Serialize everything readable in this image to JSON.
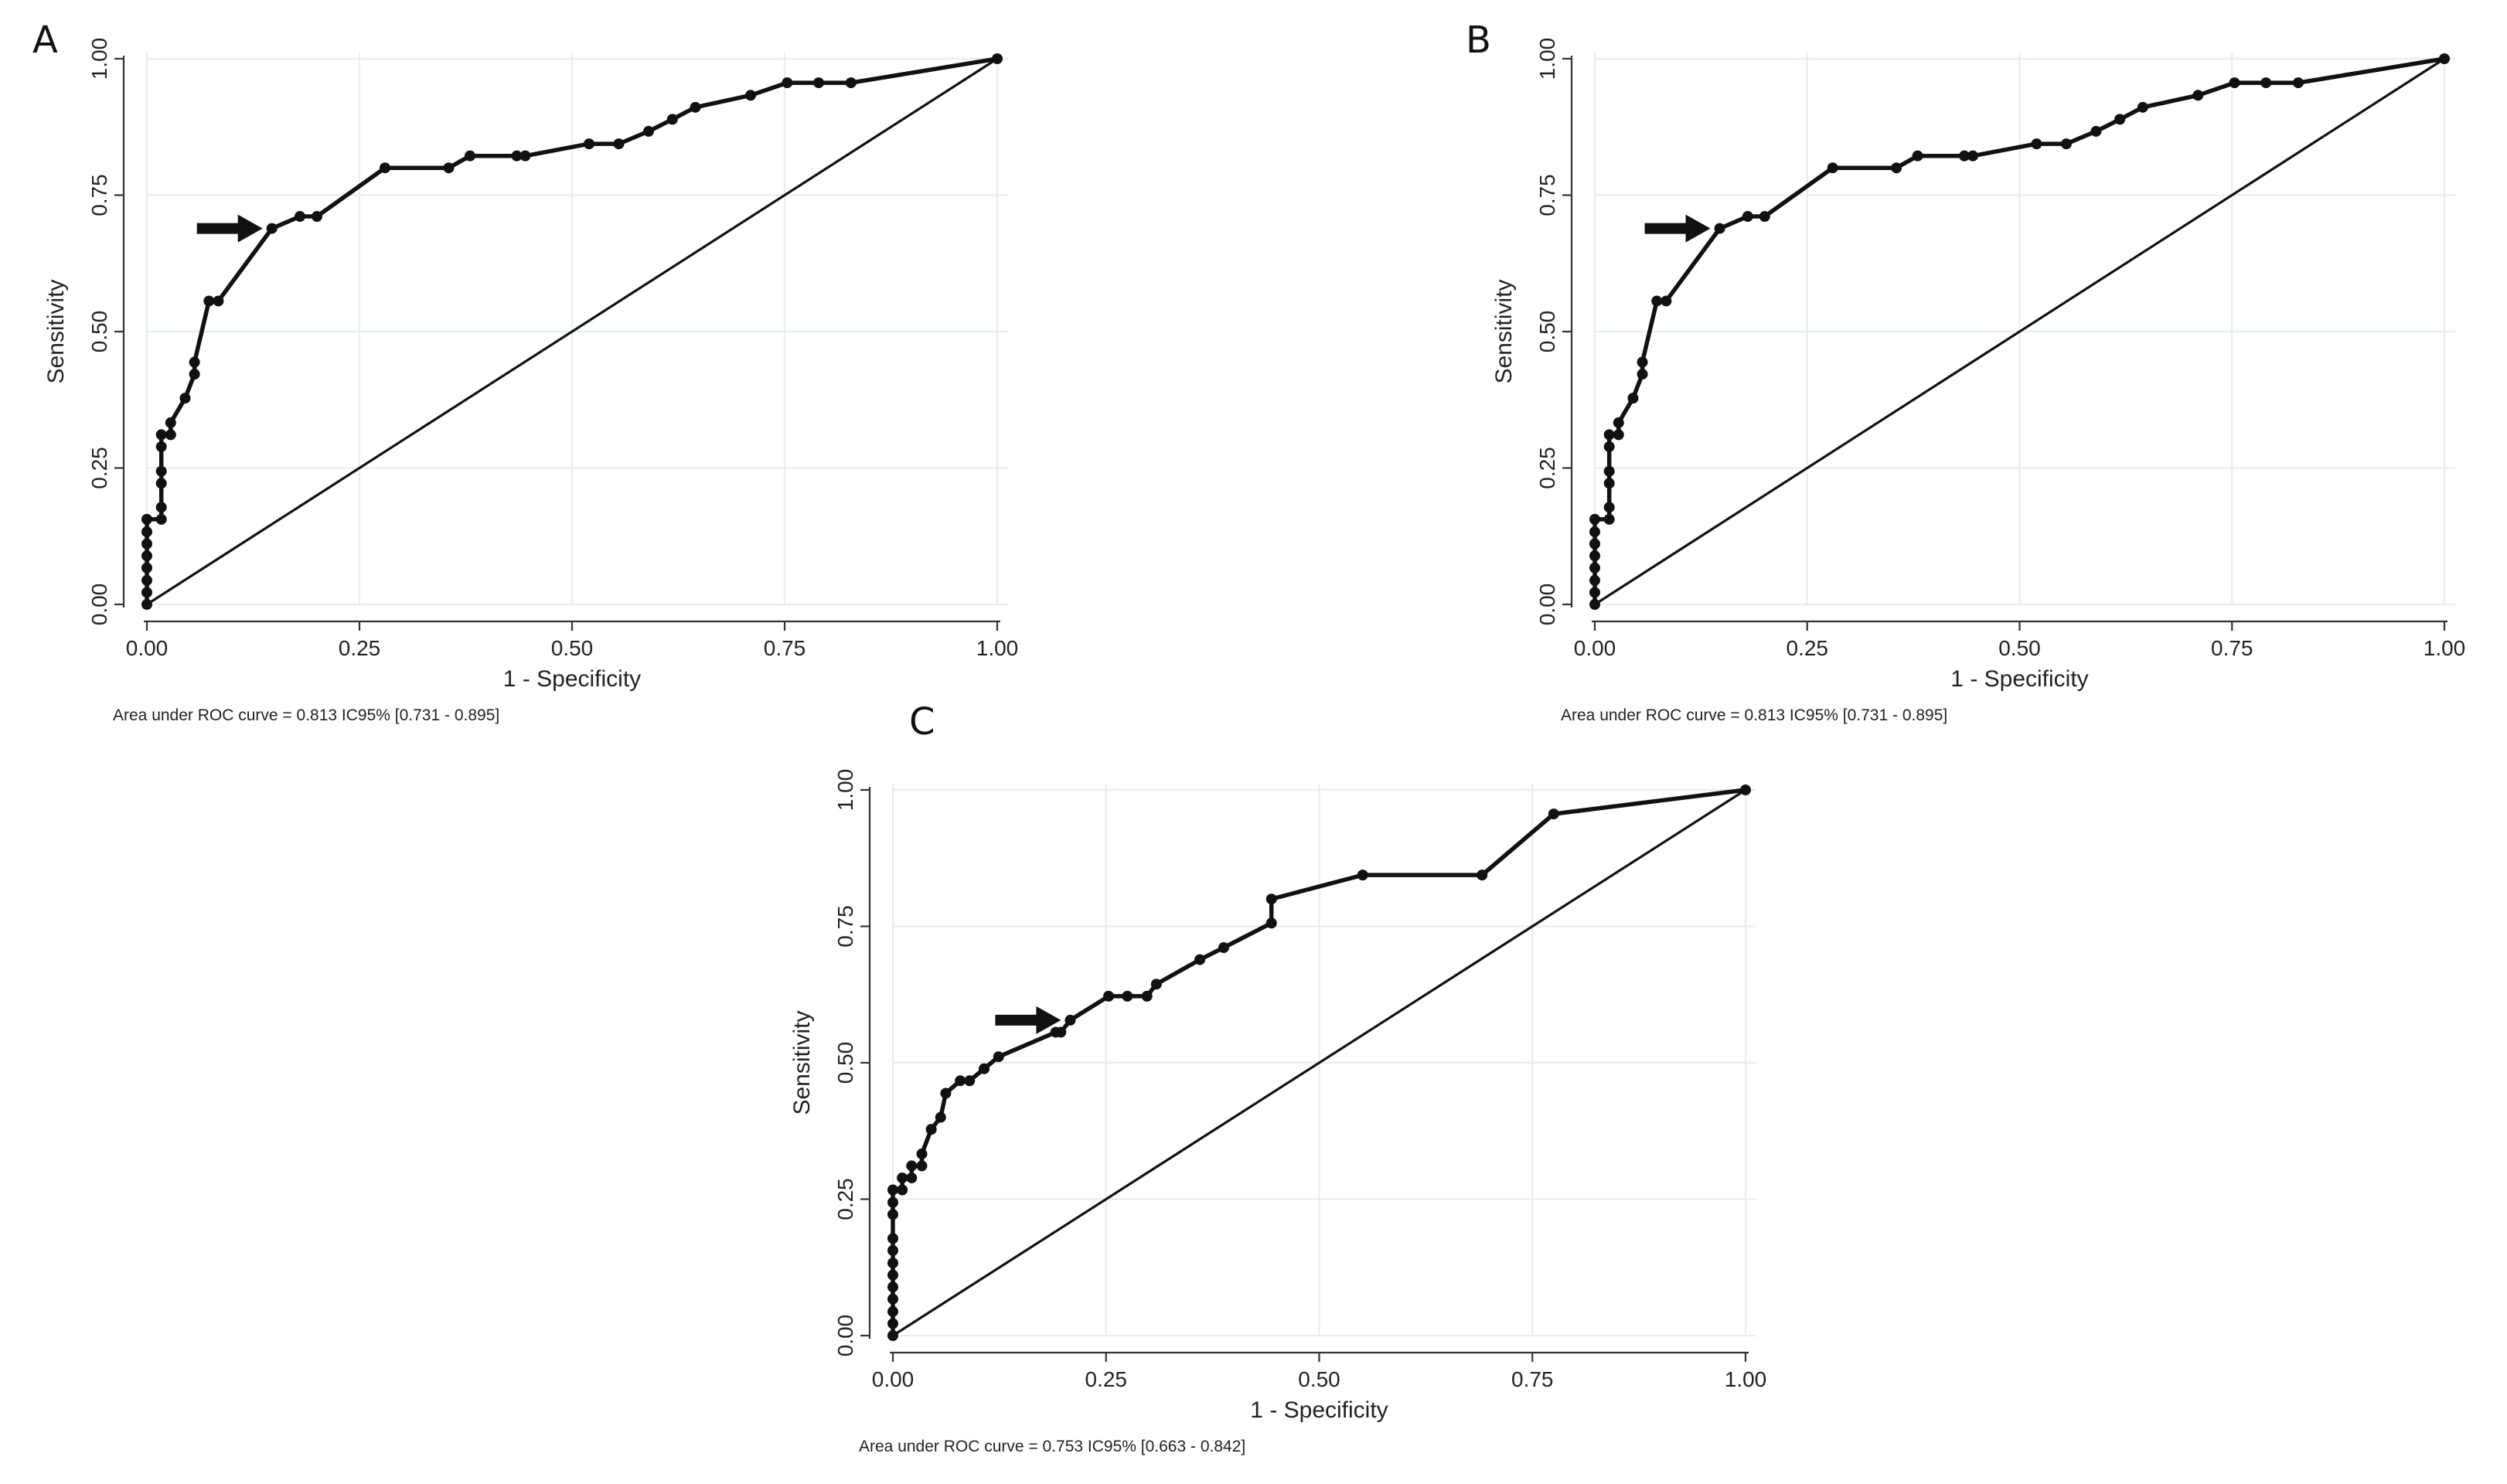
{
  "chart_data": [
    {
      "type": "line",
      "panel_label": "A",
      "xlabel": "1 - Specificity",
      "ylabel": "Sensitivity",
      "xlim": [
        0,
        1
      ],
      "ylim": [
        0,
        1
      ],
      "xticks": [
        "0.00",
        "0.25",
        "0.50",
        "0.75",
        "1.00"
      ],
      "yticks": [
        "0.00",
        "0.25",
        "0.50",
        "0.75",
        "1.00"
      ],
      "grid": true,
      "reference_line": [
        [
          0,
          0
        ],
        [
          1,
          1
        ]
      ],
      "annotation": "Area under ROC curve = 0.813  IC95% [0.731 - 0.895]",
      "arrow_at": [
        0.147,
        0.689
      ],
      "series": [
        {
          "name": "ROC curve",
          "points": [
            [
              0,
              0
            ],
            [
              0,
              0.022
            ],
            [
              0,
              0.044
            ],
            [
              0,
              0.067
            ],
            [
              0,
              0.089
            ],
            [
              0,
              0.111
            ],
            [
              0,
              0.133
            ],
            [
              0,
              0.156
            ],
            [
              0.017,
              0.156
            ],
            [
              0.017,
              0.178
            ],
            [
              0.017,
              0.222
            ],
            [
              0.017,
              0.244
            ],
            [
              0.017,
              0.289
            ],
            [
              0.017,
              0.311
            ],
            [
              0.028,
              0.311
            ],
            [
              0.028,
              0.333
            ],
            [
              0.045,
              0.378
            ],
            [
              0.056,
              0.422
            ],
            [
              0.056,
              0.444
            ],
            [
              0.073,
              0.556
            ],
            [
              0.084,
              0.556
            ],
            [
              0.147,
              0.689
            ],
            [
              0.18,
              0.711
            ],
            [
              0.2,
              0.711
            ],
            [
              0.28,
              0.8
            ],
            [
              0.355,
              0.8
            ],
            [
              0.38,
              0.822
            ],
            [
              0.435,
              0.822
            ],
            [
              0.445,
              0.822
            ],
            [
              0.52,
              0.844
            ],
            [
              0.555,
              0.844
            ],
            [
              0.59,
              0.867
            ],
            [
              0.618,
              0.889
            ],
            [
              0.645,
              0.911
            ],
            [
              0.71,
              0.933
            ],
            [
              0.753,
              0.956
            ],
            [
              0.79,
              0.956
            ],
            [
              0.828,
              0.956
            ],
            [
              1,
              1
            ]
          ]
        }
      ]
    },
    {
      "type": "line",
      "panel_label": "B",
      "xlabel": "1 - Specificity",
      "ylabel": "Sensitivity",
      "xlim": [
        0,
        1
      ],
      "ylim": [
        0,
        1
      ],
      "xticks": [
        "0.00",
        "0.25",
        "0.50",
        "0.75",
        "1.00"
      ],
      "yticks": [
        "0.00",
        "0.25",
        "0.50",
        "0.75",
        "1.00"
      ],
      "grid": true,
      "reference_line": [
        [
          0,
          0
        ],
        [
          1,
          1
        ]
      ],
      "annotation": "Area under ROC curve = 0.813  IC95% [0.731 - 0.895]",
      "arrow_at": [
        0.147,
        0.689
      ],
      "series": [
        {
          "name": "ROC curve",
          "points": [
            [
              0,
              0
            ],
            [
              0,
              0.022
            ],
            [
              0,
              0.044
            ],
            [
              0,
              0.067
            ],
            [
              0,
              0.089
            ],
            [
              0,
              0.111
            ],
            [
              0,
              0.133
            ],
            [
              0,
              0.156
            ],
            [
              0.017,
              0.156
            ],
            [
              0.017,
              0.178
            ],
            [
              0.017,
              0.222
            ],
            [
              0.017,
              0.244
            ],
            [
              0.017,
              0.289
            ],
            [
              0.017,
              0.311
            ],
            [
              0.028,
              0.311
            ],
            [
              0.028,
              0.333
            ],
            [
              0.045,
              0.378
            ],
            [
              0.056,
              0.422
            ],
            [
              0.056,
              0.444
            ],
            [
              0.073,
              0.556
            ],
            [
              0.084,
              0.556
            ],
            [
              0.147,
              0.689
            ],
            [
              0.18,
              0.711
            ],
            [
              0.2,
              0.711
            ],
            [
              0.28,
              0.8
            ],
            [
              0.355,
              0.8
            ],
            [
              0.38,
              0.822
            ],
            [
              0.435,
              0.822
            ],
            [
              0.445,
              0.822
            ],
            [
              0.52,
              0.844
            ],
            [
              0.555,
              0.844
            ],
            [
              0.59,
              0.867
            ],
            [
              0.618,
              0.889
            ],
            [
              0.645,
              0.911
            ],
            [
              0.71,
              0.933
            ],
            [
              0.753,
              0.956
            ],
            [
              0.79,
              0.956
            ],
            [
              0.828,
              0.956
            ],
            [
              1,
              1
            ]
          ]
        }
      ]
    },
    {
      "type": "line",
      "panel_label": "C",
      "xlabel": "1 - Specificity",
      "ylabel": "Sensitivity",
      "xlim": [
        0,
        1
      ],
      "ylim": [
        0,
        1
      ],
      "xticks": [
        "0.00",
        "0.25",
        "0.50",
        "0.75",
        "1.00"
      ],
      "yticks": [
        "0.00",
        "0.25",
        "0.50",
        "0.75",
        "1.00"
      ],
      "grid": true,
      "reference_line": [
        [
          0,
          0
        ],
        [
          1,
          1
        ]
      ],
      "annotation": "Area under ROC curve = 0.753  IC95% [0.663 - 0.842]",
      "arrow_at": [
        0.208,
        0.578
      ],
      "series": [
        {
          "name": "ROC curve",
          "points": [
            [
              0,
              0
            ],
            [
              0,
              0.022
            ],
            [
              0,
              0.044
            ],
            [
              0,
              0.067
            ],
            [
              0,
              0.089
            ],
            [
              0,
              0.111
            ],
            [
              0,
              0.133
            ],
            [
              0,
              0.156
            ],
            [
              0,
              0.178
            ],
            [
              0,
              0.222
            ],
            [
              0,
              0.244
            ],
            [
              0,
              0.267
            ],
            [
              0.011,
              0.267
            ],
            [
              0.011,
              0.289
            ],
            [
              0.022,
              0.289
            ],
            [
              0.022,
              0.311
            ],
            [
              0.034,
              0.311
            ],
            [
              0.034,
              0.333
            ],
            [
              0.045,
              0.378
            ],
            [
              0.056,
              0.4
            ],
            [
              0.062,
              0.444
            ],
            [
              0.079,
              0.467
            ],
            [
              0.09,
              0.467
            ],
            [
              0.107,
              0.489
            ],
            [
              0.124,
              0.511
            ],
            [
              0.191,
              0.556
            ],
            [
              0.197,
              0.556
            ],
            [
              0.208,
              0.578
            ],
            [
              0.253,
              0.622
            ],
            [
              0.275,
              0.622
            ],
            [
              0.298,
              0.622
            ],
            [
              0.309,
              0.644
            ],
            [
              0.36,
              0.689
            ],
            [
              0.388,
              0.711
            ],
            [
              0.444,
              0.756
            ],
            [
              0.444,
              0.8
            ],
            [
              0.551,
              0.844
            ],
            [
              0.691,
              0.844
            ],
            [
              0.775,
              0.956
            ],
            [
              1,
              1
            ]
          ]
        }
      ]
    }
  ]
}
